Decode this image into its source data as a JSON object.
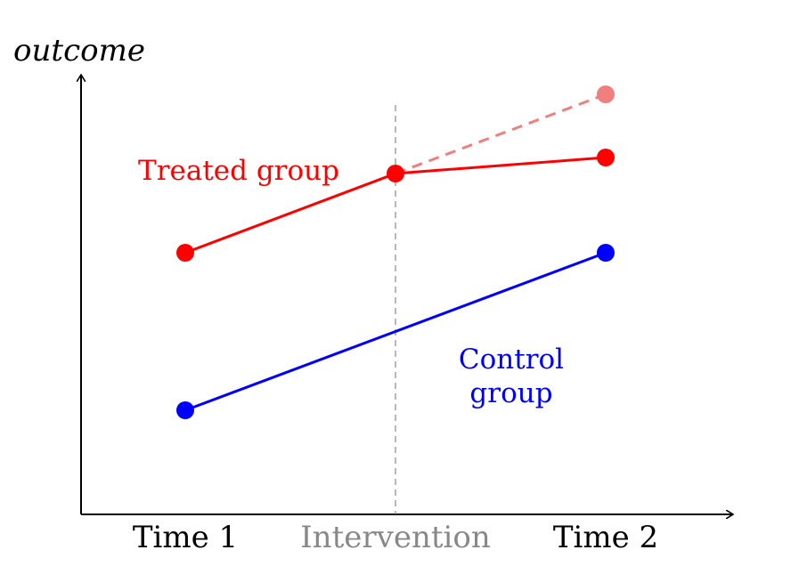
{
  "diagram": {
    "y_axis_label": "outcome",
    "x_labels": {
      "time1": "Time 1",
      "intervention": "Intervention",
      "time2": "Time 2"
    },
    "treated_label": "Treated group",
    "control_label_line1": "Control",
    "control_label_line2": "group",
    "colors": {
      "treated": "#ff0000",
      "counterfactual": "#f08080",
      "control": "#0000ff",
      "intervention_line": "#888888",
      "axis": "#000000"
    }
  }
}
